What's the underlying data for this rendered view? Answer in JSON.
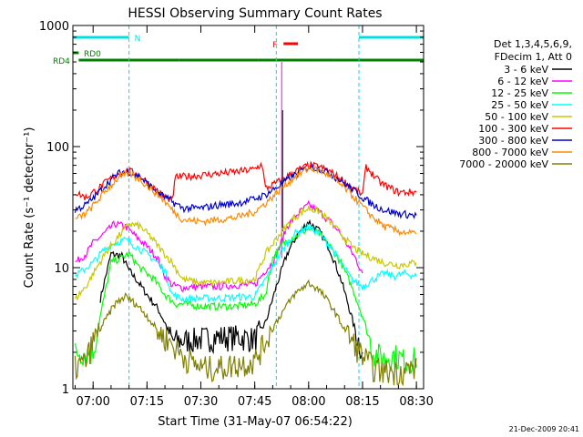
{
  "chart_data": {
    "type": "line",
    "title": "HESSI Observing Summary Count Rates",
    "xlabel": "Start Time (31-May-07 06:54:22)",
    "ylabel": "Count Rate (s⁻¹ detector⁻¹)",
    "y_scale": "log",
    "ylim": [
      1,
      1000
    ],
    "xlim": [
      "06:54:22",
      "08:32:00"
    ],
    "x_ticks": [
      "07:00",
      "07:15",
      "07:30",
      "07:45",
      "08:00",
      "08:15",
      "08:30"
    ],
    "y_ticks": [
      "1",
      "10",
      "100",
      "1000"
    ],
    "legend": {
      "placement": "right",
      "header": [
        "Det 1,3,4,5,6,9,",
        "FDecim 1, Att 0"
      ]
    },
    "date_stamp": "21-Dec-2009 20:41",
    "flags": [
      {
        "label": "N",
        "color": "#00e0e0",
        "segments": [
          [
            "06:54:22",
            "07:10:00"
          ],
          [
            "08:14:00",
            "08:32:00"
          ]
        ]
      },
      {
        "label": "RD0",
        "color": "#008000",
        "segments": [
          [
            "06:54:22",
            "06:56:00"
          ]
        ]
      },
      {
        "label": "RD4",
        "color": "#008000",
        "segments": [
          [
            "06:56:00",
            "07:24:00"
          ],
          [
            "07:24:00",
            "07:46:00"
          ],
          [
            "07:46:00",
            "08:07:00"
          ],
          [
            "08:07:00",
            "08:32:00"
          ]
        ]
      },
      {
        "label": "F",
        "color": "#ff0000",
        "segments": [
          [
            "07:53:00",
            "07:57:00"
          ]
        ]
      }
    ],
    "dashed_lines": [
      "07:10:00",
      "07:51:00",
      "08:14:00"
    ],
    "series": [
      {
        "name": "3 - 6 keV",
        "color": "#000000",
        "x": [
          "07:02",
          "07:05",
          "07:08",
          "07:10",
          "07:12",
          "07:15",
          "07:18",
          "07:20",
          "07:22",
          "07:25",
          "07:30",
          "07:35",
          "07:40",
          "07:45",
          "07:48",
          "07:51",
          "07:54",
          "07:57",
          "08:00",
          "08:03",
          "08:06",
          "08:09",
          "08:11",
          "08:13",
          "08:15"
        ],
        "y": [
          5.5,
          13,
          12.5,
          9.5,
          8,
          6,
          4.6,
          3.5,
          2.5,
          2.5,
          2.6,
          2.7,
          2.7,
          2.6,
          3.5,
          7,
          13,
          19,
          24,
          20,
          14,
          8,
          5,
          3,
          2
        ]
      },
      {
        "name": "6 - 12 keV",
        "color": "#ff00ff",
        "x": [
          "06:55",
          "06:58",
          "07:00",
          "07:03",
          "07:06",
          "07:09",
          "07:12",
          "07:15",
          "07:18",
          "07:20",
          "07:22",
          "07:25",
          "07:30",
          "07:35",
          "07:40",
          "07:45",
          "07:48",
          "07:50",
          "07:52",
          "07:54",
          "07:57",
          "08:00",
          "08:03",
          "08:06",
          "08:09",
          "08:11",
          "08:13",
          "08:15"
        ],
        "y": [
          11,
          13,
          16,
          19,
          23,
          22,
          18,
          15,
          12,
          8.5,
          7.2,
          6.8,
          7,
          7,
          7.2,
          7.2,
          9.5,
          11,
          15,
          22,
          28,
          33,
          29,
          24,
          19,
          15,
          12,
          9
        ]
      },
      {
        "name": "12 - 25 keV",
        "color": "#00ff00",
        "x": [
          "06:55",
          "07:00",
          "07:05",
          "07:10",
          "07:13",
          "07:17",
          "07:20",
          "07:23",
          "07:25",
          "07:30",
          "07:35",
          "07:40",
          "07:45",
          "07:48",
          "07:50",
          "07:53",
          "07:56",
          "08:00",
          "08:03",
          "08:06",
          "08:09",
          "08:12",
          "08:15",
          "08:18",
          "08:21",
          "08:24",
          "08:27",
          "08:30"
        ],
        "y": [
          2,
          2,
          11,
          13,
          10,
          8,
          6,
          5,
          5,
          4.8,
          4.8,
          4.8,
          5,
          6,
          12,
          16,
          18,
          21,
          19,
          15,
          11,
          7,
          4,
          2,
          1.8,
          1.9,
          1.7,
          1.8
        ]
      },
      {
        "name": "25 - 50 keV",
        "color": "#00ffff",
        "x": [
          "06:55",
          "07:00",
          "07:03",
          "07:06",
          "07:09",
          "07:12",
          "07:15",
          "07:18",
          "07:20",
          "07:22",
          "07:25",
          "07:30",
          "07:35",
          "07:40",
          "07:45",
          "07:48",
          "07:52",
          "07:56",
          "08:00",
          "08:03",
          "08:06",
          "08:09",
          "08:12",
          "08:15",
          "08:18",
          "08:21",
          "08:24",
          "08:27",
          "08:30"
        ],
        "y": [
          8.5,
          11,
          14,
          16,
          17,
          15,
          13,
          11,
          9.5,
          6,
          5.5,
          5.6,
          5.6,
          5.7,
          5.8,
          8,
          13,
          19,
          22,
          19,
          15,
          11,
          8,
          7,
          8,
          9,
          8.5,
          9,
          8.5
        ]
      },
      {
        "name": "50 - 100 keV",
        "color": "#c8c800",
        "x": [
          "06:55",
          "06:58",
          "07:01",
          "07:04",
          "07:07",
          "07:10",
          "07:13",
          "07:16",
          "07:19",
          "07:22",
          "07:25",
          "07:30",
          "07:35",
          "07:40",
          "07:45",
          "07:48",
          "07:52",
          "07:56",
          "08:00",
          "08:03",
          "08:06",
          "08:09",
          "08:12",
          "08:15",
          "08:18",
          "08:21",
          "08:25",
          "08:30"
        ],
        "y": [
          5.5,
          7,
          10,
          14,
          18,
          23,
          22,
          18,
          14,
          11,
          8,
          7.5,
          7.5,
          7.8,
          8,
          13,
          19,
          26,
          31,
          29,
          24,
          19,
          15,
          13,
          12,
          11,
          10.5,
          11
        ]
      },
      {
        "name": "100 - 300 keV",
        "color": "#ff0000",
        "x": [
          "06:55",
          "06:58",
          "07:01",
          "07:04",
          "07:07",
          "07:10",
          "07:13",
          "07:16",
          "07:19",
          "07:22",
          "07:23",
          "07:30",
          "07:35",
          "07:40",
          "07:45",
          "07:47",
          "07:48",
          "07:52",
          "07:56",
          "08:00",
          "08:03",
          "08:06",
          "08:09",
          "08:12",
          "08:15",
          "08:16",
          "08:20",
          "08:25",
          "08:30"
        ],
        "y": [
          42,
          38,
          44,
          52,
          60,
          63,
          58,
          48,
          40,
          36,
          56,
          58,
          60,
          62,
          65,
          72,
          45,
          52,
          62,
          70,
          68,
          62,
          54,
          46,
          40,
          68,
          50,
          42,
          42
        ]
      },
      {
        "name": "300 - 800 keV",
        "color": "#0000cc",
        "x": [
          "06:55",
          "06:58",
          "07:01",
          "07:04",
          "07:07",
          "07:10",
          "07:13",
          "07:16",
          "07:19",
          "07:22",
          "07:25",
          "07:30",
          "07:35",
          "07:40",
          "07:45",
          "07:48",
          "07:52",
          "07:56",
          "08:00",
          "08:03",
          "08:06",
          "08:09",
          "08:12",
          "08:15",
          "08:18",
          "08:21",
          "08:25",
          "08:30"
        ],
        "y": [
          30,
          33,
          40,
          50,
          60,
          62,
          56,
          47,
          40,
          35,
          31,
          31,
          33,
          34,
          37,
          40,
          48,
          58,
          68,
          66,
          60,
          52,
          45,
          38,
          33,
          30,
          28,
          27
        ]
      },
      {
        "name": "800 - 7000 keV",
        "color": "#ff8800",
        "x": [
          "06:55",
          "06:58",
          "07:01",
          "07:04",
          "07:07",
          "07:10",
          "07:13",
          "07:16",
          "07:19",
          "07:22",
          "07:25",
          "07:30",
          "07:35",
          "07:40",
          "07:45",
          "07:48",
          "07:52",
          "07:56",
          "08:00",
          "08:03",
          "08:06",
          "08:09",
          "08:12",
          "08:15",
          "08:18",
          "08:21",
          "08:25",
          "08:30"
        ],
        "y": [
          25,
          28,
          35,
          45,
          55,
          60,
          54,
          45,
          38,
          30,
          25,
          24,
          25,
          26,
          29,
          34,
          44,
          56,
          66,
          64,
          57,
          48,
          40,
          32,
          26,
          22,
          20,
          19
        ]
      },
      {
        "name": "7000 - 20000 keV",
        "color": "#808000",
        "x": [
          "06:55",
          "06:58",
          "07:00",
          "07:03",
          "07:06",
          "07:09",
          "07:12",
          "07:15",
          "07:18",
          "07:21",
          "07:24",
          "07:27",
          "07:30",
          "07:35",
          "07:40",
          "07:45",
          "07:48",
          "07:52",
          "07:56",
          "08:00",
          "08:03",
          "08:06",
          "08:09",
          "08:12",
          "08:15",
          "08:18",
          "08:21",
          "08:25",
          "08:30"
        ],
        "y": [
          1.5,
          1.7,
          2.5,
          3.5,
          5,
          5.8,
          5,
          4,
          3,
          2.5,
          2,
          1.7,
          1.5,
          1.5,
          1.6,
          1.7,
          2.5,
          4,
          6,
          7.5,
          6.5,
          5,
          3.5,
          2.5,
          1.9,
          1.5,
          1.4,
          1.4,
          1.5
        ]
      }
    ]
  }
}
